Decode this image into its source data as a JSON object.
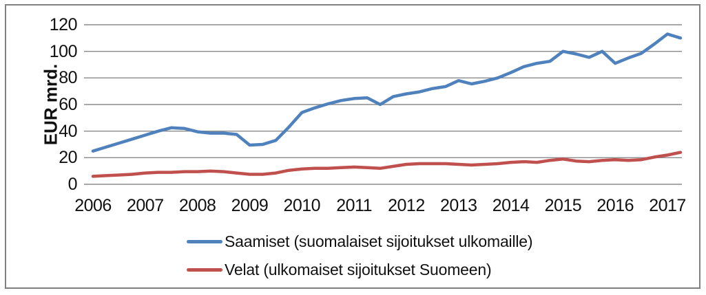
{
  "chart_data": {
    "type": "line",
    "title": "",
    "ylabel": "EUR mrd.",
    "xlabel": "",
    "ylim": [
      0,
      120
    ],
    "yticks": [
      0,
      20,
      40,
      60,
      80,
      100,
      120
    ],
    "x_tick_labels": [
      "2006",
      "2007",
      "2008",
      "2009",
      "2010",
      "2011",
      "2012",
      "2013",
      "2014",
      "2015",
      "2016",
      "2017"
    ],
    "x_frequency": "quarterly",
    "x_points_per_year": 4,
    "x_range": "2006 Q1 - 2017 Q2",
    "grid": true,
    "legend_position": "bottom-center",
    "series": [
      {
        "name": "Saamiset (suomalaiset sijoitukset ulkomaille)",
        "color": "#4F81BD",
        "values": [
          25,
          28,
          31,
          34,
          37,
          40,
          42.5,
          42,
          39.5,
          38.5,
          38.5,
          37.5,
          29.5,
          30,
          33,
          43,
          54,
          57.5,
          60.5,
          63,
          64.5,
          65,
          60,
          66,
          68,
          69.5,
          72,
          73.5,
          78,
          75.5,
          77.5,
          80,
          84,
          88.5,
          91,
          92.5,
          100,
          98,
          95.5,
          100,
          91,
          95,
          98.5,
          105.5,
          113,
          110
        ]
      },
      {
        "name": "Velat (ulkomaiset sijoitukset Suomeen)",
        "color": "#C0504D",
        "values": [
          6,
          6.5,
          7,
          7.5,
          8.5,
          9,
          9,
          9.5,
          9.5,
          10,
          9.5,
          8.5,
          7.5,
          7.5,
          8.5,
          10.5,
          11.5,
          12,
          12,
          12.5,
          13,
          12.5,
          12,
          13.5,
          15,
          15.5,
          15.5,
          15.5,
          15,
          14.5,
          15,
          15.5,
          16.5,
          17,
          16.5,
          18,
          19,
          17.5,
          17,
          18,
          18.5,
          18,
          18.5,
          20.5,
          22,
          24
        ]
      }
    ],
    "style": {
      "gridline_color": "#8a8a8a",
      "frame_border_color": "#7f7f7f",
      "background": "#ffffff",
      "line_width": 4.5
    }
  }
}
